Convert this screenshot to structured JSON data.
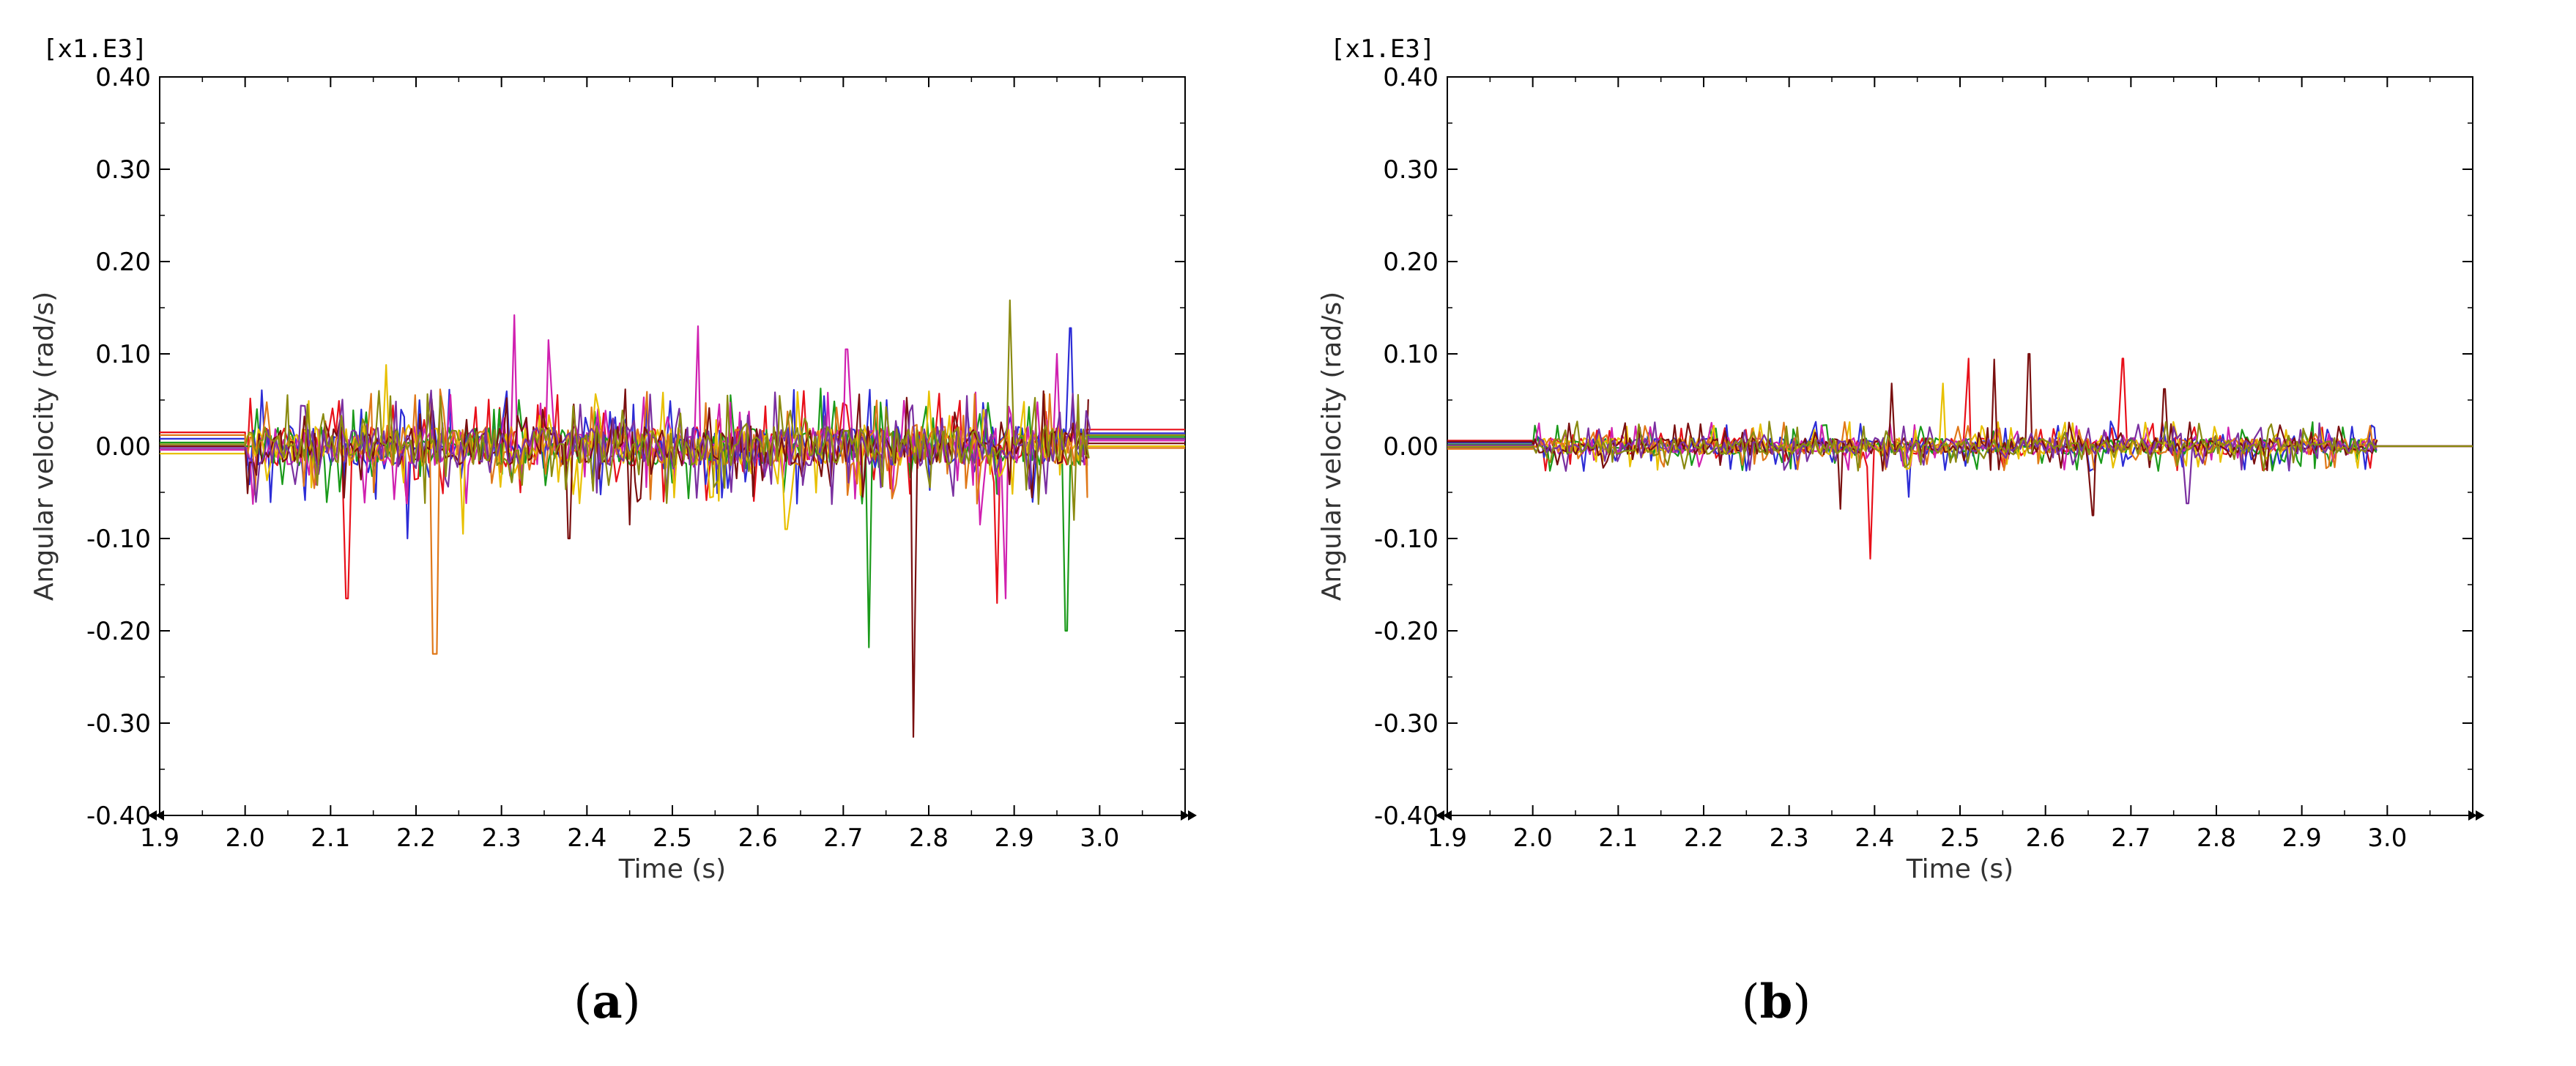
{
  "colors": {
    "series": [
      "#e8101a",
      "#2c2cd6",
      "#1a9a1a",
      "#d020b0",
      "#e8c000",
      "#e07818",
      "#7a1010",
      "#7a30a0",
      "#8a8a10"
    ],
    "axis": "#000000"
  },
  "chart_data": [
    {
      "type": "line",
      "panel_caption": "(a)",
      "caption_letter": "a",
      "scale_label": "[x1.E3]",
      "xlabel": "Time (s)",
      "ylabel": "Angular velocity (rad/s)",
      "xlim": [
        1.9,
        3.1
      ],
      "ylim": [
        -0.4,
        0.4
      ],
      "x_ticks": [
        "1.9",
        "2.0",
        "2.1",
        "2.2",
        "2.3",
        "2.4",
        "2.5",
        "2.6",
        "2.7",
        "2.8",
        "2.9",
        "3.0"
      ],
      "x_tick_values": [
        1.9,
        2.0,
        2.1,
        2.2,
        2.3,
        2.4,
        2.5,
        2.6,
        2.7,
        2.8,
        2.9,
        3.0
      ],
      "y_ticks": [
        "0.40",
        "0.30",
        "0.20",
        "0.10",
        "0.00",
        "-0.10",
        "-0.20",
        "-0.30",
        "-0.40"
      ],
      "y_tick_values": [
        0.4,
        0.3,
        0.2,
        0.1,
        0.0,
        -0.1,
        -0.2,
        -0.3,
        -0.4
      ],
      "grid": false,
      "pre_levels": [
        0.015,
        0.008,
        0.004,
        -0.004,
        -0.008,
        0.012,
        0.0,
        -0.002,
        0.002
      ],
      "post_levels": [
        0.018,
        0.014,
        0.01,
        0.006,
        0.0,
        -0.002,
        0.003,
        0.008,
        0.012
      ],
      "oscillation_amplitude": 0.035,
      "peaks": [
        [
          2.118,
          -0.165,
          0
        ],
        [
          2.165,
          0.088,
          4
        ],
        [
          2.19,
          -0.1,
          1
        ],
        [
          2.222,
          -0.225,
          5
        ],
        [
          2.255,
          -0.095,
          4
        ],
        [
          2.315,
          0.142,
          3
        ],
        [
          2.355,
          0.115,
          3
        ],
        [
          2.38,
          -0.1,
          6
        ],
        [
          2.45,
          -0.085,
          6
        ],
        [
          2.53,
          0.13,
          3
        ],
        [
          2.632,
          -0.09,
          4
        ],
        [
          2.705,
          0.105,
          3
        ],
        [
          2.73,
          -0.218,
          2
        ],
        [
          2.782,
          -0.315,
          6
        ],
        [
          2.86,
          -0.085,
          3
        ],
        [
          2.88,
          -0.17,
          0
        ],
        [
          2.895,
          0.158,
          8
        ],
        [
          2.89,
          -0.165,
          3
        ],
        [
          2.95,
          0.1,
          3
        ],
        [
          2.962,
          -0.2,
          2
        ],
        [
          2.965,
          0.128,
          1
        ],
        [
          2.97,
          -0.08,
          8
        ]
      ]
    },
    {
      "type": "line",
      "panel_caption": "(b)",
      "caption_letter": "b",
      "scale_label": "[x1.E3]",
      "xlabel": "Time (s)",
      "ylabel": "Angular velocity (rad/s)",
      "xlim": [
        1.9,
        3.1
      ],
      "ylim": [
        -0.4,
        0.4
      ],
      "x_ticks": [
        "1.9",
        "2.0",
        "2.1",
        "2.2",
        "2.3",
        "2.4",
        "2.5",
        "2.6",
        "2.7",
        "2.8",
        "2.9",
        "3.0"
      ],
      "x_tick_values": [
        1.9,
        2.0,
        2.1,
        2.2,
        2.3,
        2.4,
        2.5,
        2.6,
        2.7,
        2.8,
        2.9,
        3.0
      ],
      "y_ticks": [
        "0.40",
        "0.30",
        "0.20",
        "0.10",
        "0.00",
        "-0.10",
        "-0.20",
        "-0.30",
        "-0.40"
      ],
      "y_tick_values": [
        0.4,
        0.3,
        0.2,
        0.1,
        0.0,
        -0.1,
        -0.2,
        -0.3,
        -0.4
      ],
      "grid": false,
      "pre_levels": [
        0.006,
        0.004,
        0.002,
        -0.002,
        0.0,
        -0.003,
        0.005,
        0.001,
        -0.001
      ],
      "post_levels": [
        0.0,
        0.0,
        0.0,
        0.0,
        0.0,
        0.0,
        0.0,
        0.0,
        0.0
      ],
      "oscillation_amplitude": 0.015,
      "peaks": [
        [
          2.395,
          -0.122,
          0
        ],
        [
          2.42,
          0.068,
          6
        ],
        [
          2.48,
          0.068,
          4
        ],
        [
          2.51,
          0.095,
          0
        ],
        [
          2.54,
          0.094,
          6
        ],
        [
          2.58,
          0.1,
          6
        ],
        [
          2.655,
          -0.075,
          6
        ],
        [
          2.69,
          0.095,
          0
        ],
        [
          2.74,
          0.062,
          6
        ],
        [
          2.765,
          -0.062,
          7
        ],
        [
          2.36,
          -0.068,
          6
        ],
        [
          2.44,
          -0.055,
          1
        ]
      ]
    }
  ]
}
